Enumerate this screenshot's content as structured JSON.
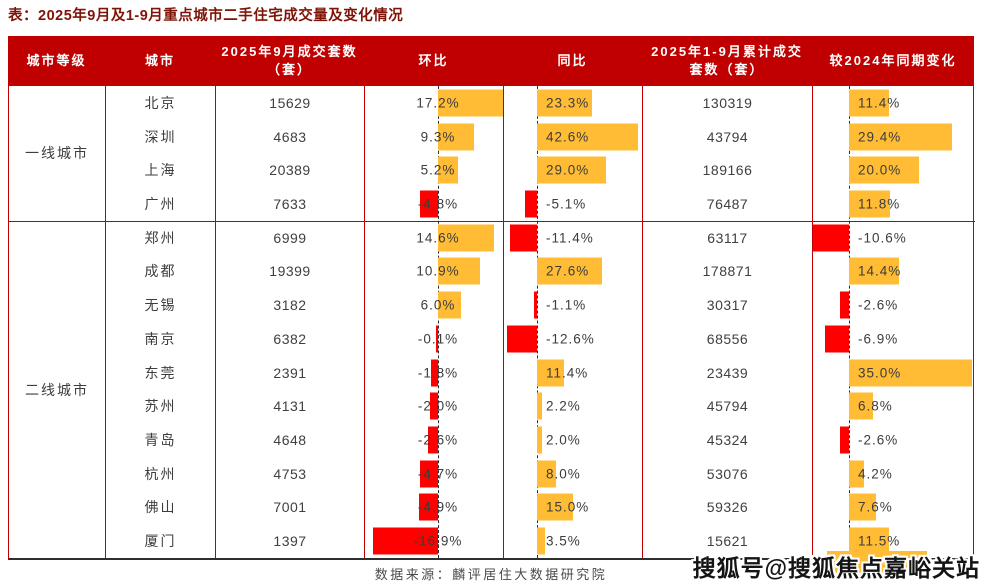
{
  "title": "表：2025年9月及1-9月重点城市二手住宅成交量及变化情况",
  "footer": {
    "source": "数据来源：麟评居住大数据研究院"
  },
  "watermark": "搜狐号@搜狐焦点嘉峪关站",
  "colors": {
    "header_bg": "#c00000",
    "grid_border": "#c00000",
    "positive_bar": "#ffbc34",
    "negative_bar": "#ff0000",
    "title_text": "#7e1408"
  },
  "table": {
    "headers": [
      "城市等级",
      "城市",
      "2025年9月成交套数（套）",
      "环比",
      "同比",
      "2025年1-9月累计成交套数（套）",
      "较2024年同期变化"
    ],
    "tiers": [
      {
        "label": "一线城市",
        "cities": [
          {
            "city": "北京",
            "sep_volume": "15629",
            "mom": 17.2,
            "mom_label": "17.2%",
            "yoy": 23.3,
            "yoy_label": "23.3%",
            "cum_volume": "130319",
            "chg": 11.4,
            "chg_label": "11.4%"
          },
          {
            "city": "深圳",
            "sep_volume": "4683",
            "mom": 9.3,
            "mom_label": "9.3%",
            "yoy": 42.6,
            "yoy_label": "42.6%",
            "cum_volume": "43794",
            "chg": 29.4,
            "chg_label": "29.4%"
          },
          {
            "city": "上海",
            "sep_volume": "20389",
            "mom": 5.2,
            "mom_label": "5.2%",
            "yoy": 29.0,
            "yoy_label": "29.0%",
            "cum_volume": "189166",
            "chg": 20.0,
            "chg_label": "20.0%"
          },
          {
            "city": "广州",
            "sep_volume": "7633",
            "mom": -4.8,
            "mom_label": "-4.8%",
            "yoy": -5.1,
            "yoy_label": "-5.1%",
            "cum_volume": "76487",
            "chg": 11.8,
            "chg_label": "11.8%"
          }
        ]
      },
      {
        "label": "二线城市",
        "cities": [
          {
            "city": "郑州",
            "sep_volume": "6999",
            "mom": 14.6,
            "mom_label": "14.6%",
            "yoy": -11.4,
            "yoy_label": "-11.4%",
            "cum_volume": "63117",
            "chg": -10.6,
            "chg_label": "-10.6%"
          },
          {
            "city": "成都",
            "sep_volume": "19399",
            "mom": 10.9,
            "mom_label": "10.9%",
            "yoy": 27.6,
            "yoy_label": "27.6%",
            "cum_volume": "178871",
            "chg": 14.4,
            "chg_label": "14.4%"
          },
          {
            "city": "无锡",
            "sep_volume": "3182",
            "mom": 6.0,
            "mom_label": "6.0%",
            "yoy": -1.1,
            "yoy_label": "-1.1%",
            "cum_volume": "30317",
            "chg": -2.6,
            "chg_label": "-2.6%"
          },
          {
            "city": "南京",
            "sep_volume": "6382",
            "mom": -0.1,
            "mom_label": "-0.1%",
            "yoy": -12.6,
            "yoy_label": "-12.6%",
            "cum_volume": "68556",
            "chg": -6.9,
            "chg_label": "-6.9%"
          },
          {
            "city": "东莞",
            "sep_volume": "2391",
            "mom": -1.8,
            "mom_label": "-1.8%",
            "yoy": 11.4,
            "yoy_label": "11.4%",
            "cum_volume": "23439",
            "chg": 35.0,
            "chg_label": "35.0%"
          },
          {
            "city": "苏州",
            "sep_volume": "4131",
            "mom": -2.0,
            "mom_label": "-2.0%",
            "yoy": 2.2,
            "yoy_label": "2.2%",
            "cum_volume": "45794",
            "chg": 6.8,
            "chg_label": "6.8%"
          },
          {
            "city": "青岛",
            "sep_volume": "4648",
            "mom": -2.6,
            "mom_label": "-2.6%",
            "yoy": 2.0,
            "yoy_label": "2.0%",
            "cum_volume": "45324",
            "chg": -2.6,
            "chg_label": "-2.6%"
          },
          {
            "city": "杭州",
            "sep_volume": "4753",
            "mom": -4.7,
            "mom_label": "-4.7%",
            "yoy": 8.0,
            "yoy_label": "8.0%",
            "cum_volume": "53076",
            "chg": 4.2,
            "chg_label": "4.2%"
          },
          {
            "city": "佛山",
            "sep_volume": "7001",
            "mom": -4.9,
            "mom_label": "-4.9%",
            "yoy": 15.0,
            "yoy_label": "15.0%",
            "cum_volume": "59326",
            "chg": 7.6,
            "chg_label": "7.6%"
          },
          {
            "city": "厦门",
            "sep_volume": "1397",
            "mom": -16.9,
            "mom_label": "-16.9%",
            "yoy": 3.5,
            "yoy_label": "3.5%",
            "cum_volume": "15621",
            "chg": 11.5,
            "chg_label": "11.5%"
          }
        ]
      }
    ]
  },
  "chart_data": {
    "type": "table",
    "title": "2025年9月及1-9月重点城市二手住宅成交量及变化情况",
    "columns": [
      "城市等级",
      "城市",
      "2025年9月成交套数（套）",
      "环比",
      "同比",
      "2025年1-9月累计成交套数（套）",
      "较2024年同期变化"
    ],
    "categories": [
      "北京",
      "深圳",
      "上海",
      "广州",
      "郑州",
      "成都",
      "无锡",
      "南京",
      "东莞",
      "苏州",
      "青岛",
      "杭州",
      "佛山",
      "厦门"
    ],
    "tier_of_city": [
      "一线城市",
      "一线城市",
      "一线城市",
      "一线城市",
      "二线城市",
      "二线城市",
      "二线城市",
      "二线城市",
      "二线城市",
      "二线城市",
      "二线城市",
      "二线城市",
      "二线城市",
      "二线城市"
    ],
    "series": [
      {
        "name": "2025年9月成交套数（套）",
        "values": [
          15629,
          4683,
          20389,
          7633,
          6999,
          19399,
          3182,
          6382,
          2391,
          4131,
          4648,
          4753,
          7001,
          1397
        ]
      },
      {
        "name": "环比(%)",
        "values": [
          17.2,
          9.3,
          5.2,
          -4.8,
          14.6,
          10.9,
          6.0,
          -0.1,
          -1.8,
          -2.0,
          -2.6,
          -4.7,
          -4.9,
          -16.9
        ]
      },
      {
        "name": "同比(%)",
        "values": [
          23.3,
          42.6,
          29.0,
          -5.1,
          -11.4,
          27.6,
          -1.1,
          -12.6,
          11.4,
          2.2,
          2.0,
          8.0,
          15.0,
          3.5
        ]
      },
      {
        "name": "2025年1-9月累计成交套数（套）",
        "values": [
          130319,
          43794,
          189166,
          76487,
          63117,
          178871,
          30317,
          68556,
          23439,
          45794,
          45324,
          53076,
          59326,
          15621
        ]
      },
      {
        "name": "较2024年同期变化(%)",
        "values": [
          11.4,
          29.4,
          20.0,
          11.8,
          -10.6,
          14.4,
          -2.6,
          -6.9,
          35.0,
          6.8,
          -2.6,
          4.2,
          7.6,
          11.5
        ]
      }
    ],
    "layout": {
      "positive_bar_color": "#ffbc34",
      "negative_bar_color": "#ff0000",
      "zero_line": "dashed",
      "bar_columns": [
        "环比",
        "同比",
        "较2024年同期变化"
      ]
    }
  }
}
